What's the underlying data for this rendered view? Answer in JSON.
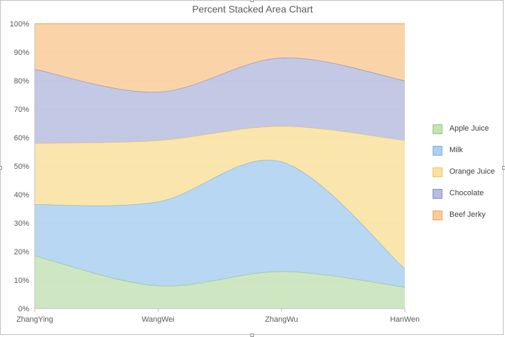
{
  "chart_data": {
    "type": "area",
    "stacking": "percent",
    "title": "Percent Stacked Area Chart",
    "categories": [
      "ZhangYing",
      "WangWei",
      "ZhangWu",
      "HanWen"
    ],
    "ylim": [
      0,
      100
    ],
    "yticks": [
      "0%",
      "10%",
      "20%",
      "30%",
      "40%",
      "50%",
      "60%",
      "70%",
      "80%",
      "90%",
      "100%"
    ],
    "series": [
      {
        "name": "Apple Juice",
        "values": [
          18.5,
          8,
          13,
          7.5
        ],
        "color": "#c5e3b7",
        "stroke": "#8fc47e"
      },
      {
        "name": "Milk",
        "values": [
          18,
          29.5,
          38.5,
          6.5
        ],
        "color": "#acd0f0",
        "stroke": "#7eaed8"
      },
      {
        "name": "Orange Juice",
        "values": [
          21.5,
          21.5,
          12.5,
          45
        ],
        "color": "#f9e19f",
        "stroke": "#e6c65c"
      },
      {
        "name": "Chocolate",
        "values": [
          26,
          17,
          24,
          21
        ],
        "color": "#b9bee1",
        "stroke": "#8288c0"
      },
      {
        "name": "Beef Jerky",
        "values": [
          16,
          24,
          12,
          20
        ],
        "color": "#f9cc99",
        "stroke": "#e9a35a"
      }
    ],
    "legend_position": "right",
    "grid": true
  }
}
